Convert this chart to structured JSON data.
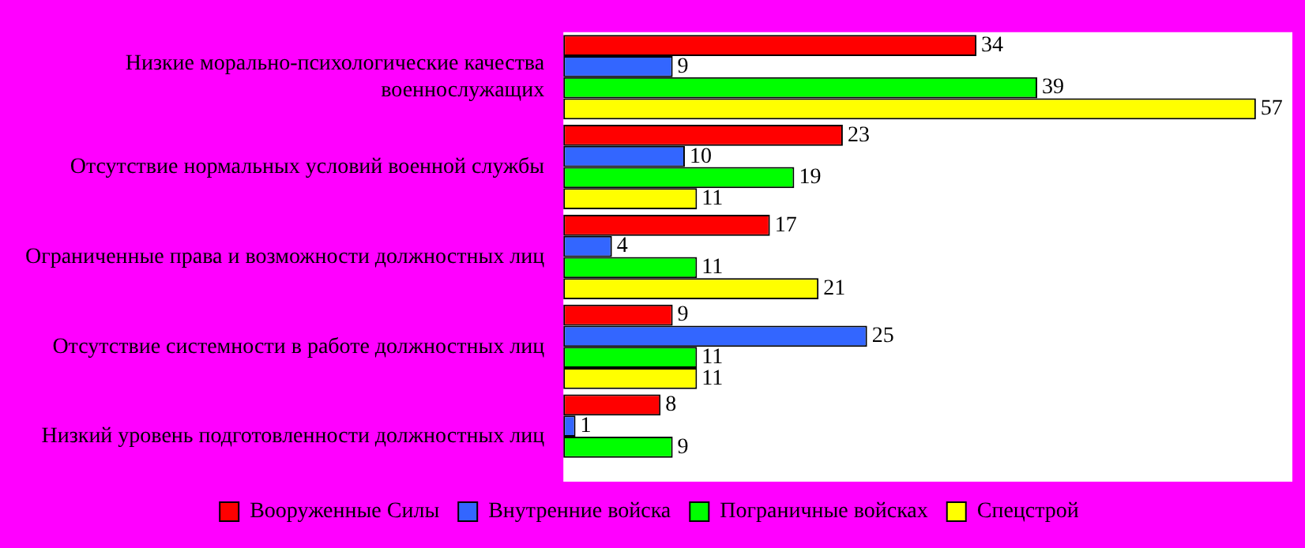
{
  "chart_data": {
    "type": "bar",
    "orientation": "horizontal",
    "categories": [
      "Низкие морально-психологические качества военнослужащих",
      "Отсутствие нормальных условий военной службы",
      "Ограниченные права и возможности должностных лиц",
      "Отсутствие системности в работе должностных лиц",
      "Низкий уровень подготовленности должностных лиц"
    ],
    "series": [
      {
        "name": "Вооруженные Силы",
        "color": "#ff0000",
        "values": [
          34,
          23,
          17,
          9,
          8
        ]
      },
      {
        "name": "Внутренние войска",
        "color": "#3366ff",
        "values": [
          9,
          10,
          4,
          25,
          1
        ]
      },
      {
        "name": "Пограничные войсках",
        "color": "#00ff00",
        "values": [
          39,
          19,
          11,
          11,
          9
        ]
      },
      {
        "name": "Спецстрой",
        "color": "#ffff00",
        "values": [
          57,
          11,
          21,
          11,
          null
        ]
      }
    ],
    "xlim": [
      0,
      60
    ],
    "tick_labels": "y",
    "legend": "bottom",
    "data_labels": true
  }
}
